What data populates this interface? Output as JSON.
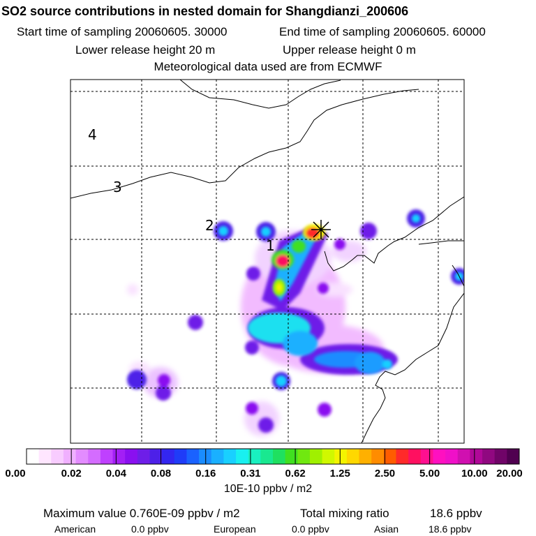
{
  "header": {
    "title": "SO2 source contributions in nested domain for Shangdianzi_200606",
    "start_time": "Start time of sampling 20060605. 30000",
    "end_time": "End time of sampling 20060605. 60000",
    "lower_release": "Lower release height   20 m",
    "upper_release": "Upper release height    0 m",
    "met_data": "Meteorological data used are from ECMWF"
  },
  "map": {
    "ring_labels": [
      "1",
      "2",
      "3",
      "4"
    ],
    "receptor_marker": "asterisk-icon",
    "colors": {
      "boundary": "#000000",
      "grid": "#000000"
    }
  },
  "colorbar": {
    "tick_labels": [
      "0.00",
      "0.02",
      "0.04",
      "0.08",
      "0.16",
      "0.31",
      "0.62",
      "1.25",
      "2.50",
      "5.00",
      "10.00",
      "20.00"
    ],
    "colors": [
      "#ffffff",
      "#ffe6ff",
      "#f8ccff",
      "#f0b0ff",
      "#e38cff",
      "#d46cff",
      "#bf40ff",
      "#a31ff5",
      "#8a10f0",
      "#6e1ee8",
      "#4d20e8",
      "#3326f0",
      "#1f3cf8",
      "#1a62ff",
      "#1a8cff",
      "#1ab0ff",
      "#19d0ff",
      "#19f0f0",
      "#19f0c0",
      "#19e890",
      "#1fe060",
      "#40e020",
      "#70e810",
      "#a0f000",
      "#d0f800",
      "#f4f400",
      "#ffd800",
      "#ffb000",
      "#ff8c00",
      "#ff5c00",
      "#ff2a2a",
      "#ff1060",
      "#ff1090",
      "#ff10c0",
      "#f010c8",
      "#d010b0",
      "#b00898",
      "#900880",
      "#700468",
      "#500050"
    ],
    "units": "10E-10 ppbv / m2"
  },
  "summary": {
    "max_value_label": "Maximum value  0.760E-09 ppbv / m2",
    "total_label": "Total mixing ratio",
    "total_value": "18.6 ppbv",
    "regions": [
      {
        "name": "American",
        "value": "0.0 ppbv"
      },
      {
        "name": "European",
        "value": "0.0 ppbv"
      },
      {
        "name": "Asian",
        "value": "18.6 ppbv"
      }
    ]
  }
}
